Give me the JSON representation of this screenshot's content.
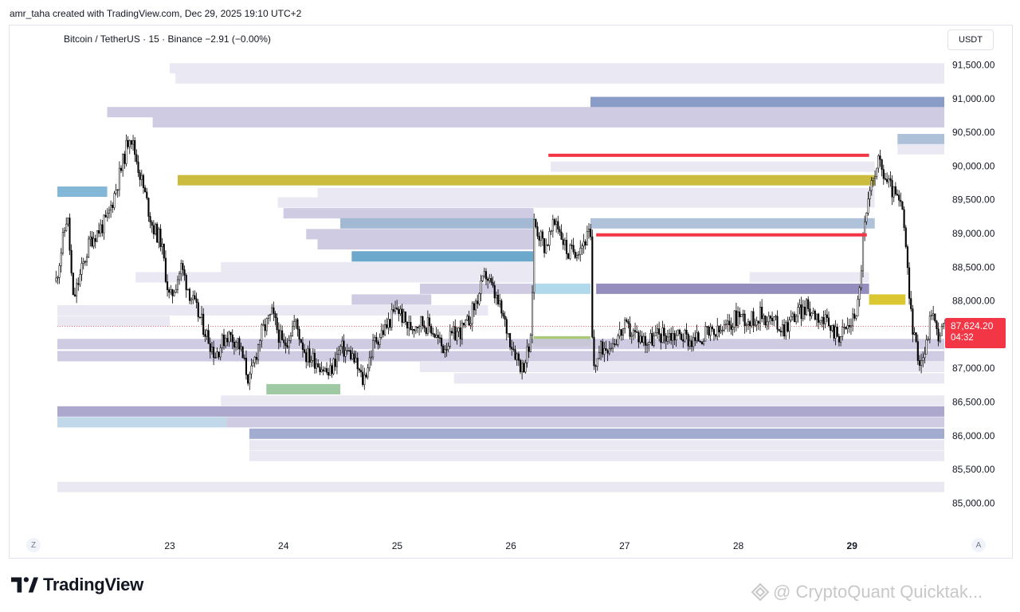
{
  "header": {
    "credit": "amr_taha created with TradingView.com, Dec 29, 2025 19:10 UTC+2"
  },
  "symbol": {
    "line": "Bitcoin / TetherUS · 15 · Binance  −2.91 (−0.00%)"
  },
  "currency_label": "USDT",
  "price_tag": {
    "price": "87,624.20",
    "countdown": "04:32"
  },
  "nav": {
    "left": "Z",
    "right": "A"
  },
  "branding": {
    "logo_text": "TradingView",
    "watermark": "@ CryptoQuant Quicktak..."
  },
  "colors": {
    "down_line": "#f23645",
    "candle": "#000000",
    "price_tag": "#f23645"
  },
  "icons": [
    "tradingview-logo-icon",
    "cryptoquant-watermark-icon"
  ],
  "chart_data": {
    "type": "candlestick",
    "title": "",
    "xlabel": "",
    "ylabel": "",
    "x_ticks": [
      "23",
      "24",
      "25",
      "26",
      "27",
      "28",
      "29"
    ],
    "x_tick_bold": "29",
    "x_range_days": [
      22.0,
      29.82
    ],
    "y_ticks": [
      85000,
      85500,
      86000,
      86500,
      87000,
      87500,
      88000,
      88500,
      89000,
      89500,
      90000,
      90500,
      91000,
      91500
    ],
    "y_tick_labels": [
      "85,000.00",
      "85,500.00",
      "86,000.00",
      "86,500.00",
      "87,000.00",
      "87,500.00",
      "88,000.00",
      "88,500.00",
      "89,000.00",
      "89,500.00",
      "90,000.00",
      "90,500.00",
      "91,000.00",
      "91,500.00"
    ],
    "ylim": [
      84720,
      91780
    ],
    "last_price": 87624.2,
    "price_path": [
      [
        22.0,
        88300
      ],
      [
        22.1,
        89300
      ],
      [
        22.15,
        88000
      ],
      [
        22.3,
        88900
      ],
      [
        22.45,
        89200
      ],
      [
        22.58,
        90000
      ],
      [
        22.65,
        90500
      ],
      [
        22.75,
        89800
      ],
      [
        22.85,
        89100
      ],
      [
        22.92,
        88900
      ],
      [
        23.0,
        88000
      ],
      [
        23.1,
        88500
      ],
      [
        23.2,
        88000
      ],
      [
        23.3,
        87600
      ],
      [
        23.4,
        87200
      ],
      [
        23.5,
        87500
      ],
      [
        23.6,
        87400
      ],
      [
        23.7,
        86800
      ],
      [
        23.8,
        87500
      ],
      [
        23.9,
        87800
      ],
      [
        24.0,
        87300
      ],
      [
        24.1,
        87700
      ],
      [
        24.2,
        87200
      ],
      [
        24.3,
        87100
      ],
      [
        24.4,
        86900
      ],
      [
        24.5,
        87300
      ],
      [
        24.6,
        87200
      ],
      [
        24.7,
        86800
      ],
      [
        24.8,
        87400
      ],
      [
        24.9,
        87600
      ],
      [
        25.0,
        87900
      ],
      [
        25.1,
        87600
      ],
      [
        25.2,
        87700
      ],
      [
        25.3,
        87600
      ],
      [
        25.4,
        87300
      ],
      [
        25.5,
        87500
      ],
      [
        25.6,
        87600
      ],
      [
        25.7,
        88000
      ],
      [
        25.78,
        88400
      ],
      [
        25.9,
        87900
      ],
      [
        26.0,
        87400
      ],
      [
        26.1,
        87000
      ],
      [
        26.18,
        87400
      ],
      [
        26.2,
        89200
      ],
      [
        26.3,
        88800
      ],
      [
        26.4,
        89200
      ],
      [
        26.5,
        88700
      ],
      [
        26.6,
        88800
      ],
      [
        26.7,
        89000
      ],
      [
        26.72,
        87000
      ],
      [
        26.8,
        87300
      ],
      [
        26.9,
        87400
      ],
      [
        27.0,
        87600
      ],
      [
        27.1,
        87500
      ],
      [
        27.2,
        87400
      ],
      [
        27.3,
        87500
      ],
      [
        27.4,
        87500
      ],
      [
        27.5,
        87500
      ],
      [
        27.6,
        87400
      ],
      [
        27.7,
        87500
      ],
      [
        27.8,
        87500
      ],
      [
        27.9,
        87600
      ],
      [
        28.0,
        87800
      ],
      [
        28.1,
        87700
      ],
      [
        28.2,
        87800
      ],
      [
        28.3,
        87700
      ],
      [
        28.4,
        87600
      ],
      [
        28.5,
        87800
      ],
      [
        28.6,
        87900
      ],
      [
        28.7,
        87800
      ],
      [
        28.8,
        87600
      ],
      [
        28.9,
        87500
      ],
      [
        29.0,
        87700
      ],
      [
        29.06,
        88000
      ],
      [
        29.1,
        89000
      ],
      [
        29.15,
        89500
      ],
      [
        29.22,
        90100
      ],
      [
        29.3,
        89800
      ],
      [
        29.4,
        89500
      ],
      [
        29.45,
        89300
      ],
      [
        29.5,
        88100
      ],
      [
        29.55,
        87400
      ],
      [
        29.6,
        87100
      ],
      [
        29.65,
        87300
      ],
      [
        29.7,
        87900
      ],
      [
        29.75,
        87500
      ],
      [
        29.82,
        87624
      ]
    ],
    "resistance_lines": [
      {
        "price": 90160,
        "from_day": 26.33,
        "to_day": 29.15
      },
      {
        "price": 88980,
        "from_day": 26.75,
        "to_day": 29.13
      }
    ],
    "liquidity_bands": [
      {
        "price": 91450,
        "from_day": 23.0,
        "to_day": 29.82,
        "intensity": "low"
      },
      {
        "price": 91300,
        "from_day": 23.05,
        "to_day": 29.82,
        "intensity": "low"
      },
      {
        "price": 90950,
        "from_day": 26.7,
        "to_day": 29.82,
        "intensity": "high",
        "color": "#7f93c2"
      },
      {
        "price": 90800,
        "from_day": 22.45,
        "to_day": 29.82,
        "intensity": "medium"
      },
      {
        "price": 90650,
        "from_day": 22.85,
        "to_day": 29.82,
        "intensity": "medium"
      },
      {
        "price": 90400,
        "from_day": 29.4,
        "to_day": 29.82,
        "intensity": "medium",
        "color": "#a6bcd6"
      },
      {
        "price": 90250,
        "from_day": 29.4,
        "to_day": 29.82,
        "intensity": "low"
      },
      {
        "price": 89990,
        "from_day": 26.35,
        "to_day": 29.2,
        "intensity": "low"
      },
      {
        "price": 89790,
        "from_day": 23.07,
        "to_day": 29.2,
        "intensity": "gold",
        "color": "#c7b52e"
      },
      {
        "price": 89620,
        "from_day": 22.0,
        "to_day": 22.45,
        "intensity": "blue",
        "color": "#78b1d4"
      },
      {
        "price": 89600,
        "from_day": 24.3,
        "to_day": 29.2,
        "intensity": "low"
      },
      {
        "price": 89460,
        "from_day": 23.95,
        "to_day": 29.2,
        "intensity": "low"
      },
      {
        "price": 89300,
        "from_day": 24.0,
        "to_day": 26.2,
        "intensity": "medium"
      },
      {
        "price": 89150,
        "from_day": 24.5,
        "to_day": 26.2,
        "intensity": "medium",
        "color": "#9bb3cf"
      },
      {
        "price": 89150,
        "from_day": 26.7,
        "to_day": 29.2,
        "intensity": "medium",
        "color": "#a9bdd6"
      },
      {
        "price": 88990,
        "from_day": 24.2,
        "to_day": 26.2,
        "intensity": "medium"
      },
      {
        "price": 88840,
        "from_day": 24.3,
        "to_day": 26.2,
        "intensity": "medium"
      },
      {
        "price": 88660,
        "from_day": 24.6,
        "to_day": 26.2,
        "intensity": "blue",
        "color": "#5fa0c8"
      },
      {
        "price": 88500,
        "from_day": 23.45,
        "to_day": 26.2,
        "intensity": "low"
      },
      {
        "price": 88350,
        "from_day": 22.7,
        "to_day": 26.2,
        "intensity": "low"
      },
      {
        "price": 88180,
        "from_day": 25.2,
        "to_day": 26.2,
        "intensity": "medium"
      },
      {
        "price": 88180,
        "from_day": 26.2,
        "to_day": 26.7,
        "intensity": "blue",
        "color": "#a9d6ea"
      },
      {
        "price": 88180,
        "from_day": 26.75,
        "to_day": 29.15,
        "intensity": "medium",
        "color": "#8a84b8"
      },
      {
        "price": 88350,
        "from_day": 28.1,
        "to_day": 29.15,
        "intensity": "low"
      },
      {
        "price": 88020,
        "from_day": 24.6,
        "to_day": 25.3,
        "intensity": "medium"
      },
      {
        "price": 88020,
        "from_day": 29.15,
        "to_day": 29.47,
        "intensity": "gold",
        "color": "#d8c21f"
      },
      {
        "price": 87860,
        "from_day": 22.0,
        "to_day": 25.8,
        "intensity": "low"
      },
      {
        "price": 87700,
        "from_day": 22.0,
        "to_day": 23.0,
        "intensity": "low"
      },
      {
        "price": 87400,
        "from_day": 26.2,
        "to_day": 26.7,
        "intensity": "green",
        "color": "#a3c46a"
      },
      {
        "price": 87360,
        "from_day": 22.0,
        "to_day": 29.82,
        "intensity": "medium"
      },
      {
        "price": 87180,
        "from_day": 22.0,
        "to_day": 29.82,
        "intensity": "medium"
      },
      {
        "price": 87020,
        "from_day": 25.2,
        "to_day": 29.82,
        "intensity": "low"
      },
      {
        "price": 86850,
        "from_day": 25.5,
        "to_day": 29.82,
        "intensity": "low"
      },
      {
        "price": 86690,
        "from_day": 23.85,
        "to_day": 24.5,
        "intensity": "green",
        "color": "#97c49a"
      },
      {
        "price": 86520,
        "from_day": 23.45,
        "to_day": 29.82,
        "intensity": "low"
      },
      {
        "price": 86360,
        "from_day": 22.0,
        "to_day": 29.82,
        "intensity": "medium",
        "color": "#a59fc8"
      },
      {
        "price": 86200,
        "from_day": 22.0,
        "to_day": 23.5,
        "intensity": "blue",
        "color": "#bcd4e8"
      },
      {
        "price": 86200,
        "from_day": 23.5,
        "to_day": 29.82,
        "intensity": "medium"
      },
      {
        "price": 86030,
        "from_day": 23.7,
        "to_day": 29.82,
        "intensity": "high",
        "color": "#9aa5cc"
      },
      {
        "price": 85860,
        "from_day": 23.7,
        "to_day": 29.82,
        "intensity": "low"
      },
      {
        "price": 85700,
        "from_day": 23.7,
        "to_day": 29.82,
        "intensity": "low"
      },
      {
        "price": 85240,
        "from_day": 22.0,
        "to_day": 29.82,
        "intensity": "low"
      }
    ]
  }
}
